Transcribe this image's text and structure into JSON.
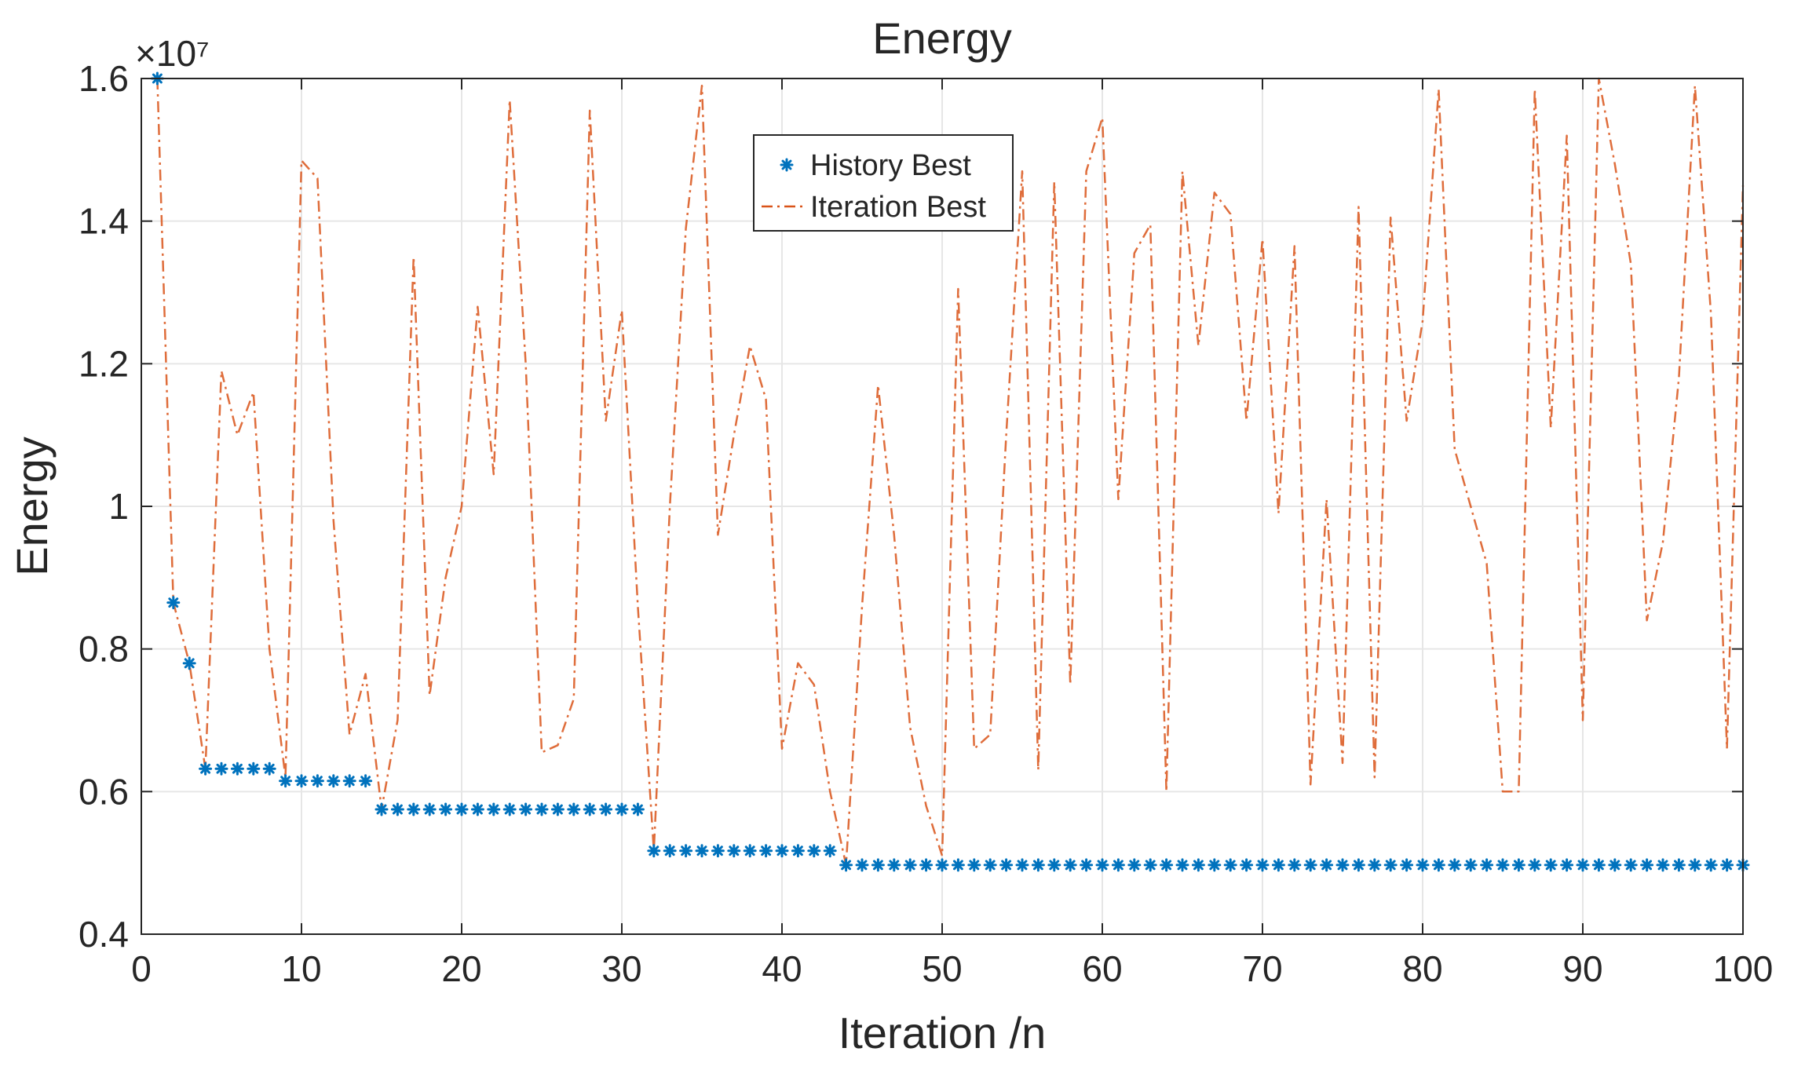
{
  "chart_data": {
    "type": "line",
    "title": "Energy",
    "xlabel": "Iteration /n",
    "ylabel": "Energy",
    "xlim": [
      0,
      100
    ],
    "ylim": [
      0.4,
      1.6
    ],
    "y_exponent_label": "×10⁷",
    "xticks": [
      0,
      10,
      20,
      30,
      40,
      50,
      60,
      70,
      80,
      90,
      100
    ],
    "yticks": [
      0.4,
      0.6,
      0.8,
      1.0,
      1.2,
      1.4,
      1.6
    ],
    "ytick_labels": [
      "0.4",
      "0.6",
      "0.8",
      "1",
      "1.2",
      "1.4",
      "1.6"
    ],
    "grid": true,
    "legend_position": "top-center",
    "series": [
      {
        "name": "History Best",
        "style": "markers-asterisk",
        "color": "#0072BD",
        "x": [
          1,
          2,
          3,
          4,
          5,
          6,
          7,
          8,
          9,
          10,
          11,
          12,
          13,
          14,
          15,
          16,
          17,
          18,
          19,
          20,
          21,
          22,
          23,
          24,
          25,
          26,
          27,
          28,
          29,
          30,
          31,
          32,
          33,
          34,
          35,
          36,
          37,
          38,
          39,
          40,
          41,
          42,
          43,
          44,
          45,
          46,
          47,
          48,
          49,
          50,
          51,
          52,
          53,
          54,
          55,
          56,
          57,
          58,
          59,
          60,
          61,
          62,
          63,
          64,
          65,
          66,
          67,
          68,
          69,
          70,
          71,
          72,
          73,
          74,
          75,
          76,
          77,
          78,
          79,
          80,
          81,
          82,
          83,
          84,
          85,
          86,
          87,
          88,
          89,
          90,
          91,
          92,
          93,
          94,
          95,
          96,
          97,
          98,
          99,
          100
        ],
        "values": [
          1.6,
          0.865,
          0.78,
          0.632,
          0.632,
          0.632,
          0.632,
          0.632,
          0.615,
          0.615,
          0.615,
          0.615,
          0.615,
          0.615,
          0.575,
          0.575,
          0.575,
          0.575,
          0.575,
          0.575,
          0.575,
          0.575,
          0.575,
          0.575,
          0.575,
          0.575,
          0.575,
          0.575,
          0.575,
          0.575,
          0.575,
          0.517,
          0.517,
          0.517,
          0.517,
          0.517,
          0.517,
          0.517,
          0.517,
          0.517,
          0.517,
          0.517,
          0.517,
          0.497,
          0.497,
          0.497,
          0.497,
          0.497,
          0.497,
          0.497,
          0.497,
          0.497,
          0.497,
          0.497,
          0.497,
          0.497,
          0.497,
          0.497,
          0.497,
          0.497,
          0.497,
          0.497,
          0.497,
          0.497,
          0.497,
          0.497,
          0.497,
          0.497,
          0.497,
          0.497,
          0.497,
          0.497,
          0.497,
          0.497,
          0.497,
          0.497,
          0.497,
          0.497,
          0.497,
          0.497,
          0.497,
          0.497,
          0.497,
          0.497,
          0.497,
          0.497,
          0.497,
          0.497,
          0.497,
          0.497,
          0.497,
          0.497,
          0.497,
          0.497,
          0.497,
          0.497,
          0.497,
          0.497,
          0.497,
          0.497
        ]
      },
      {
        "name": "Iteration Best",
        "style": "dash-dot-line",
        "color": "#D95319",
        "x": [
          1,
          2,
          3,
          4,
          5,
          6,
          7,
          8,
          9,
          10,
          11,
          12,
          13,
          14,
          15,
          16,
          17,
          18,
          19,
          20,
          21,
          22,
          23,
          24,
          25,
          26,
          27,
          28,
          29,
          30,
          31,
          32,
          33,
          34,
          35,
          36,
          37,
          38,
          39,
          40,
          41,
          42,
          43,
          44,
          45,
          46,
          47,
          48,
          49,
          50,
          51,
          52,
          53,
          54,
          55,
          56,
          57,
          58,
          59,
          60,
          61,
          62,
          63,
          64,
          65,
          66,
          67,
          68,
          69,
          70,
          71,
          72,
          73,
          74,
          75,
          76,
          77,
          78,
          79,
          80,
          81,
          82,
          83,
          84,
          85,
          86,
          87,
          88,
          89,
          90,
          91,
          92,
          93,
          94,
          95,
          96,
          97,
          98,
          99,
          100
        ],
        "values": [
          1.6,
          0.865,
          0.78,
          0.632,
          1.19,
          1.1,
          1.16,
          0.8,
          0.62,
          1.485,
          1.46,
          0.98,
          0.68,
          0.765,
          0.575,
          0.7,
          1.35,
          0.735,
          0.9,
          1.0,
          1.28,
          1.045,
          1.57,
          1.2,
          0.655,
          0.665,
          0.73,
          1.555,
          1.12,
          1.275,
          0.86,
          0.517,
          1.0,
          1.39,
          1.59,
          0.96,
          1.1,
          1.225,
          1.15,
          0.66,
          0.78,
          0.75,
          0.6,
          0.497,
          0.86,
          1.17,
          0.96,
          0.69,
          0.58,
          0.51,
          1.305,
          0.66,
          0.68,
          1.1,
          1.47,
          0.63,
          1.455,
          0.75,
          1.47,
          1.545,
          1.01,
          1.355,
          1.395,
          0.6,
          1.47,
          1.225,
          1.44,
          1.41,
          1.12,
          1.375,
          0.99,
          1.365,
          0.61,
          1.01,
          0.64,
          1.42,
          0.62,
          1.405,
          1.12,
          1.26,
          1.585,
          1.08,
          1.0,
          0.92,
          0.6,
          0.6,
          1.585,
          1.11,
          1.52,
          0.7,
          1.6,
          1.48,
          1.34,
          0.84,
          0.95,
          1.18,
          1.59,
          1.27,
          0.66,
          1.45
        ]
      }
    ]
  }
}
